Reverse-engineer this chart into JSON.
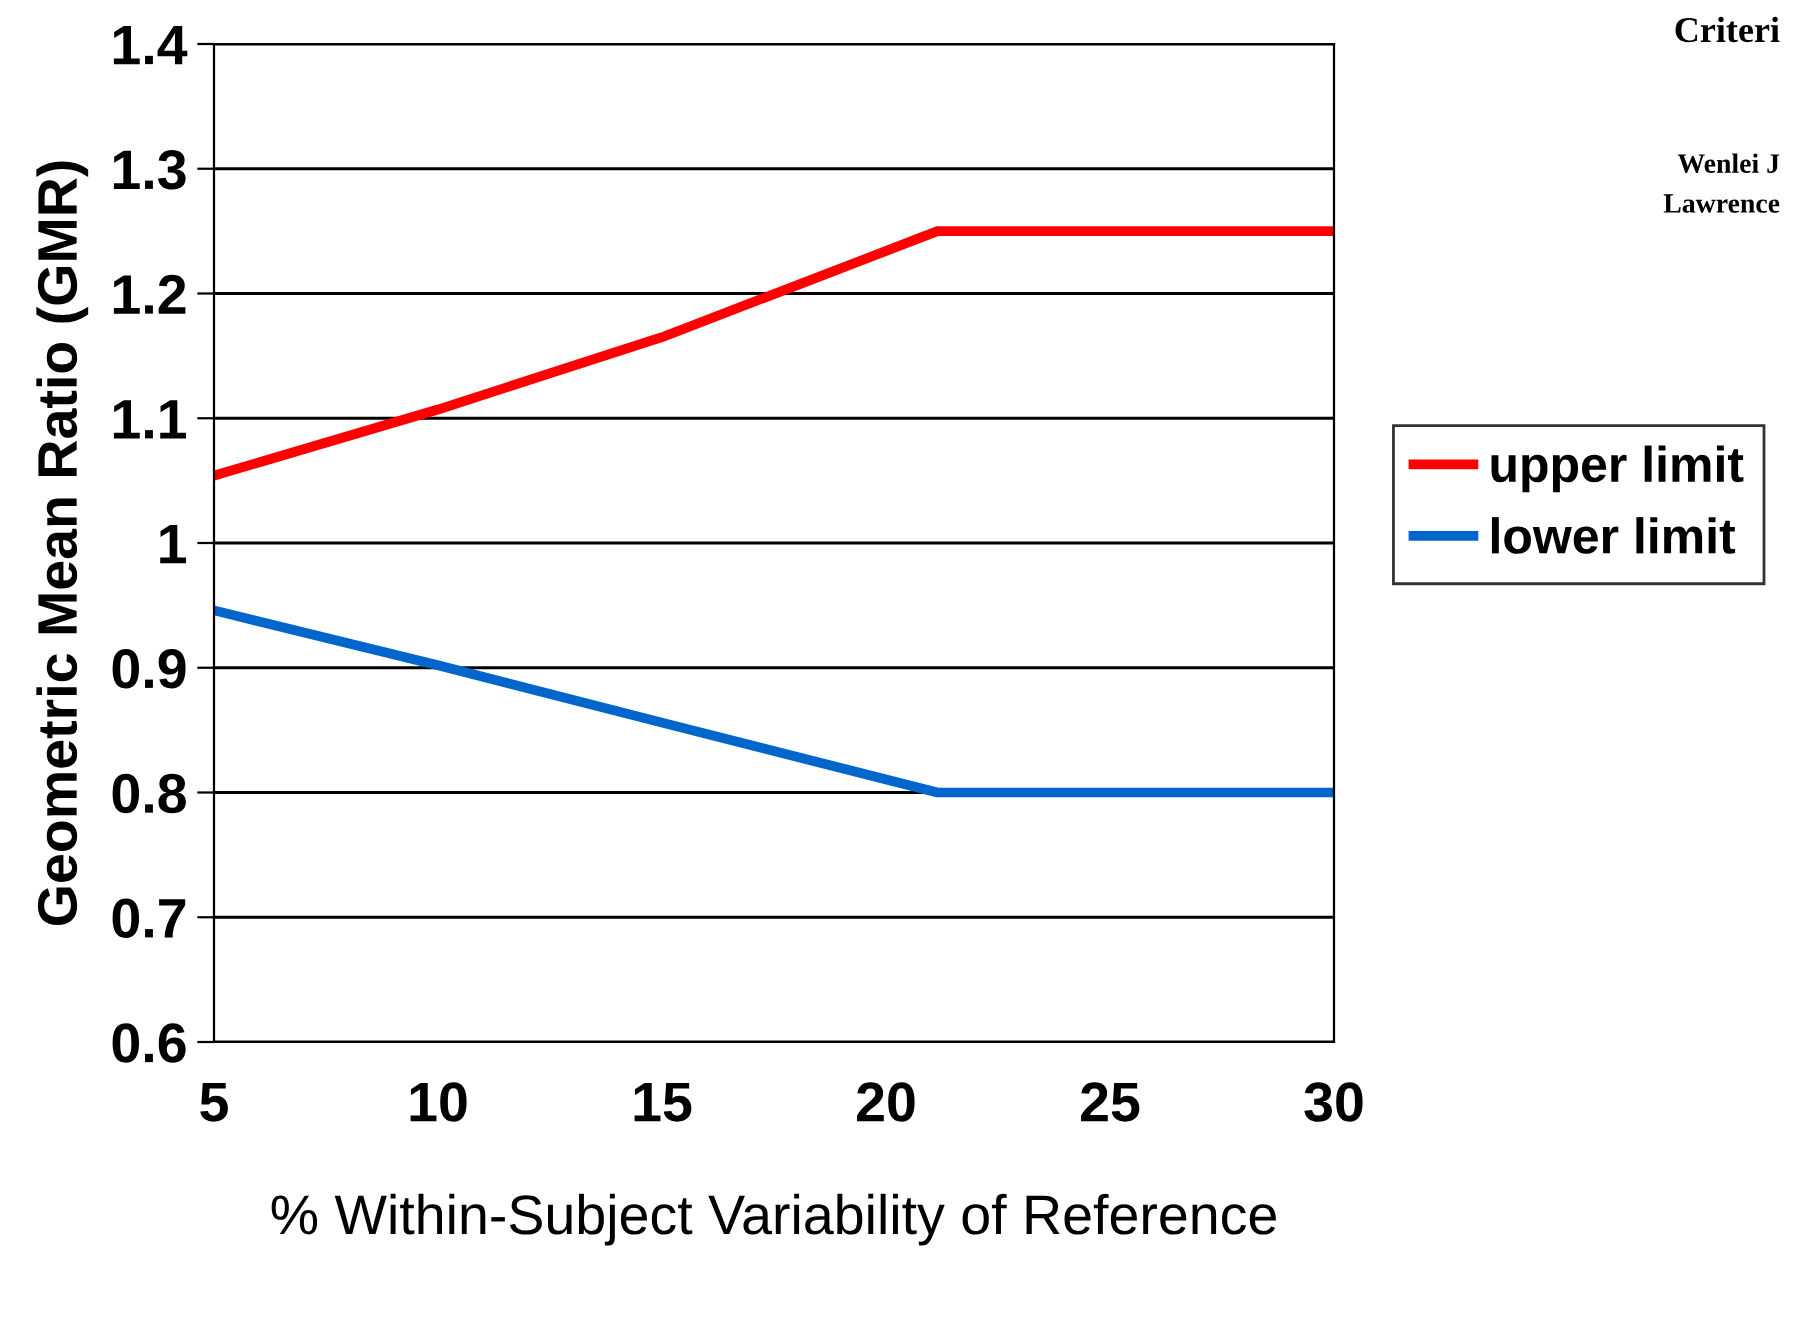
{
  "chart_data": {
    "type": "line",
    "xlabel": "% Within-Subject Variability of Reference",
    "ylabel": "Geometric Mean Ratio (GMR)",
    "series": [
      {
        "name": "upper limit",
        "color": "#ff0000",
        "x": [
          5,
          10,
          15,
          21.15,
          30
        ],
        "values": [
          1.054,
          1.107,
          1.165,
          1.25,
          1.25
        ]
      },
      {
        "name": "lower limit",
        "color": "#0066cc",
        "x": [
          5,
          10,
          15,
          21.15,
          30
        ],
        "values": [
          0.946,
          0.902,
          0.856,
          0.8,
          0.8
        ]
      }
    ],
    "xlim": [
      5,
      30
    ],
    "xticks": [
      5,
      10,
      15,
      20,
      25,
      30
    ],
    "ylim": [
      0.6,
      1.4
    ],
    "yticks": [
      0.6,
      0.7,
      0.8,
      0.9,
      1,
      1.1,
      1.2,
      1.3,
      1.4
    ],
    "grid": "y",
    "legend": "right",
    "marker": "none",
    "line_style": "solid",
    "annotations": [
      "Criteri",
      "Wenlei J",
      "Lawrence"
    ]
  }
}
